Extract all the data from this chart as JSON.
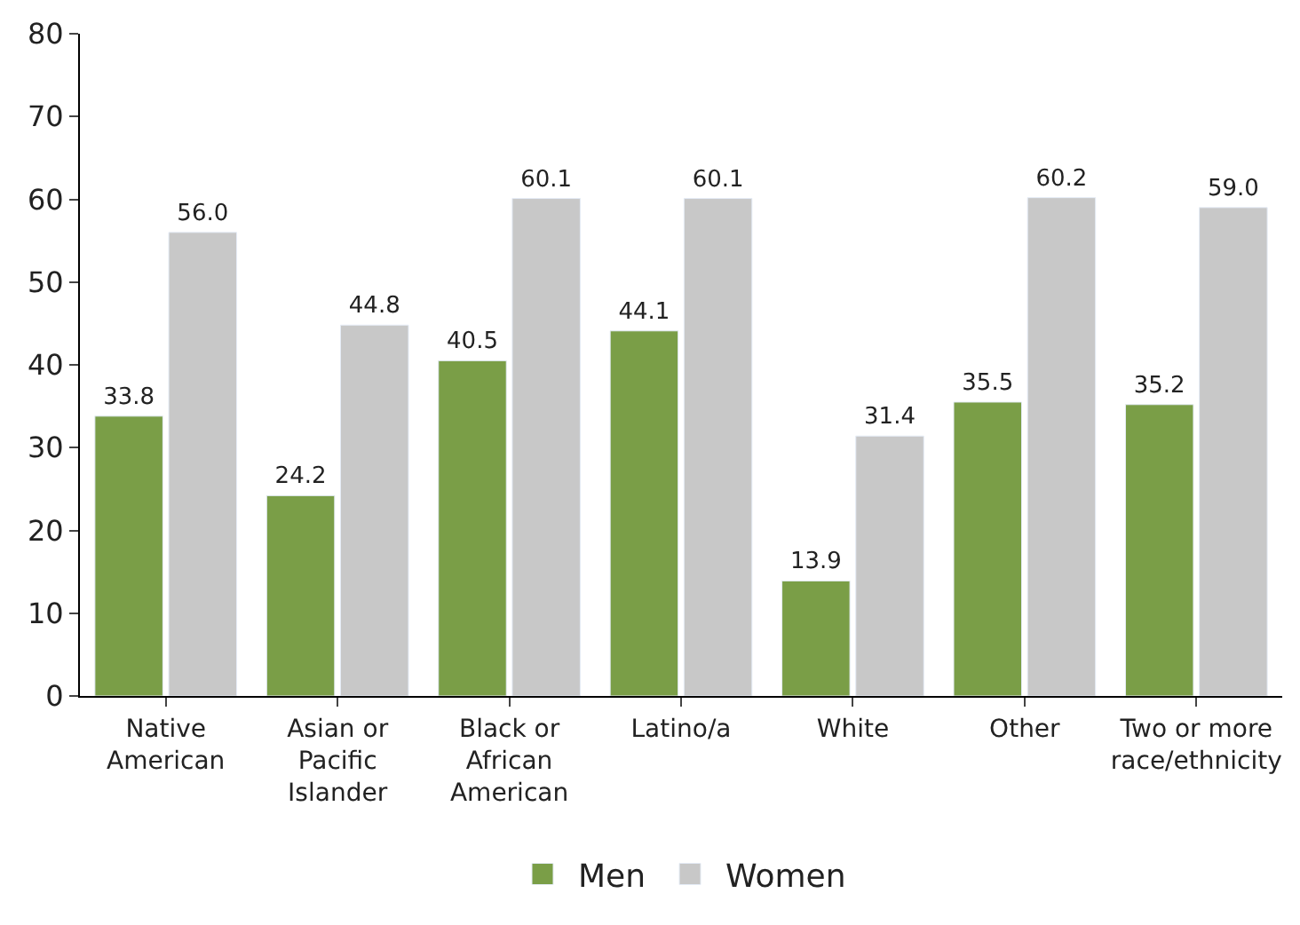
{
  "chart_data": {
    "type": "bar",
    "categories": [
      "Native American",
      "Asian or Pacific Islander",
      "Black or African American",
      "Latino/a",
      "White",
      "Other",
      "Two or more race/ethnicity"
    ],
    "series": [
      {
        "name": "Men",
        "color": "#7a9e47",
        "values": [
          33.8,
          24.2,
          40.5,
          44.1,
          13.9,
          35.5,
          35.2
        ]
      },
      {
        "name": "Women",
        "color": "#c8c8c8",
        "values": [
          56.0,
          44.8,
          60.1,
          60.1,
          31.4,
          60.2,
          59.0
        ]
      }
    ],
    "value_labels": [
      [
        "33.8",
        "24.2",
        "40.5",
        "44.1",
        "13.9",
        "35.5",
        "35.2"
      ],
      [
        "56.0",
        "44.8",
        "60.1",
        "60.1",
        "31.4",
        "60.2",
        "59.0"
      ]
    ],
    "ylim": [
      0,
      80
    ],
    "yticks": [
      0,
      10,
      20,
      30,
      40,
      50,
      60,
      70,
      80
    ],
    "legend": "bottom"
  }
}
